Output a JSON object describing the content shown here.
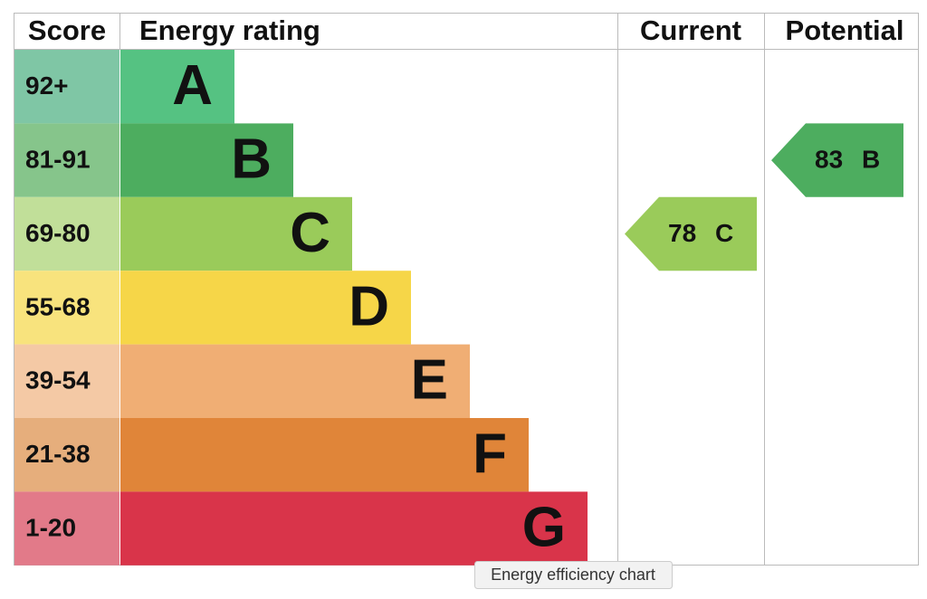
{
  "headers": [
    "Score",
    "Energy rating",
    "Current",
    "Potential"
  ],
  "bands": [
    {
      "score": "92+",
      "letter": "A",
      "color": "#55c282",
      "score_color": "#7fc6a5"
    },
    {
      "score": "81-91",
      "letter": "B",
      "color": "#4dad5f",
      "score_color": "#86c58b"
    },
    {
      "score": "69-80",
      "letter": "C",
      "color": "#9acb5a",
      "score_color": "#c1df99"
    },
    {
      "score": "55-68",
      "letter": "D",
      "color": "#f6d648",
      "score_color": "#f8e37d"
    },
    {
      "score": "39-54",
      "letter": "E",
      "color": "#f0ae74",
      "score_color": "#f4c9a5"
    },
    {
      "score": "21-38",
      "letter": "F",
      "color": "#e08539",
      "score_color": "#e6ae7c"
    },
    {
      "score": "1-20",
      "letter": "G",
      "color": "#d9344a",
      "score_color": "#e27a89"
    }
  ],
  "current": {
    "value": 78,
    "letter": "C"
  },
  "potential": {
    "value": 83,
    "letter": "B"
  },
  "tooltip": "Energy efficiency chart"
}
